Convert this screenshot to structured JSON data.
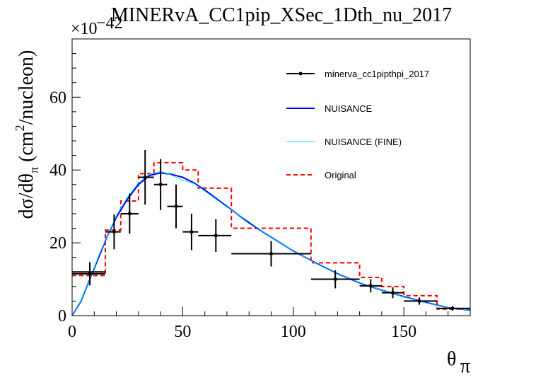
{
  "chart_data": {
    "type": "line",
    "title": "MINERvA_CC1pip_XSec_1Dth_nu_2017",
    "xlabel_main": "θ",
    "xlabel_sub": "π",
    "ylabel_parts": [
      "dσ/dθ",
      "π",
      " (cm",
      "2",
      "/nucleon)"
    ],
    "yscale_base": "×10",
    "yscale_exp": "−42",
    "xlim": [
      0,
      180
    ],
    "ylim": [
      0,
      76
    ],
    "xticks": [
      0,
      50,
      100,
      150
    ],
    "yticks": [
      0,
      20,
      40,
      60
    ],
    "colors": {
      "data": "#000000",
      "nuisance": "#0000ff",
      "fine": "#00e5ee",
      "original": "#ff0000"
    },
    "series": [
      {
        "name": "minerva_cc1pipthpi_2017",
        "kind": "points",
        "points": [
          {
            "x": 0,
            "x0": 0,
            "x1": 15,
            "y": 12,
            "err": 0,
            "xerr_draw": true
          },
          {
            "x": 8,
            "x0": 0,
            "x1": 15,
            "y": 11.5,
            "err": 3.2,
            "xerr_draw": false
          },
          {
            "x": 19,
            "x0": 15,
            "x1": 22,
            "y": 23,
            "err": 4.8
          },
          {
            "x": 26,
            "x0": 22,
            "x1": 30,
            "y": 28,
            "err": 5.5
          },
          {
            "x": 33,
            "x0": 30,
            "x1": 37,
            "y": 38,
            "err": 7.5
          },
          {
            "x": 40,
            "x0": 37,
            "x1": 43,
            "y": 36,
            "err": 7
          },
          {
            "x": 47,
            "x0": 43,
            "x1": 50,
            "y": 30,
            "err": 6
          },
          {
            "x": 54,
            "x0": 50,
            "x1": 57,
            "y": 23,
            "err": 5
          },
          {
            "x": 65,
            "x0": 57,
            "x1": 72,
            "y": 22,
            "err": 4.5
          },
          {
            "x": 90,
            "x0": 72,
            "x1": 108,
            "y": 17,
            "err": 3.5
          },
          {
            "x": 119,
            "x0": 108,
            "x1": 130,
            "y": 10,
            "err": 2.5
          },
          {
            "x": 135,
            "x0": 130,
            "x1": 140,
            "y": 8.2,
            "err": 1.8
          },
          {
            "x": 145,
            "x0": 140,
            "x1": 150,
            "y": 6.3,
            "err": 1.5
          },
          {
            "x": 157,
            "x0": 150,
            "x1": 165,
            "y": 4,
            "err": 1
          },
          {
            "x": 172,
            "x0": 165,
            "x1": 180,
            "y": 2,
            "err": 0.6
          }
        ]
      },
      {
        "name": "NUISANCE",
        "kind": "line",
        "x": [
          0,
          4,
          8,
          12,
          16,
          20,
          25,
          30,
          35,
          40,
          45,
          50,
          55,
          60,
          70,
          80,
          90,
          100,
          110,
          120,
          130,
          140,
          150,
          160,
          170,
          180
        ],
        "y": [
          0,
          4,
          10,
          16,
          22,
          27,
          32,
          36,
          38.5,
          39.2,
          38.8,
          38,
          36.5,
          34.5,
          30,
          25.5,
          21.5,
          17.8,
          14.5,
          11.5,
          9,
          7,
          5.2,
          3.6,
          2.2,
          1.5
        ]
      },
      {
        "name": "NUISANCE (FINE)",
        "kind": "line",
        "x": [
          0,
          4,
          8,
          12,
          16,
          20,
          25,
          30,
          35,
          40,
          45,
          50,
          55,
          60,
          70,
          80,
          90,
          100,
          110,
          120,
          130,
          140,
          150,
          160,
          170,
          180
        ],
        "y": [
          0,
          4.2,
          10,
          16.5,
          22,
          27.5,
          32.5,
          36.5,
          38.8,
          39.6,
          38.6,
          37.2,
          36.3,
          34.2,
          29.8,
          25.8,
          21.4,
          17.9,
          14.4,
          11.4,
          9.1,
          7,
          5.1,
          3.5,
          2.2,
          1.5
        ]
      },
      {
        "name": "Original",
        "kind": "step",
        "edges": [
          0,
          15,
          22,
          30,
          37,
          43,
          50,
          57,
          72,
          108,
          130,
          140,
          150,
          165,
          180
        ],
        "values": [
          11,
          23.5,
          31.5,
          39,
          42,
          42,
          40,
          35,
          24,
          14.5,
          10.5,
          8,
          5.5,
          1.8
        ]
      }
    ]
  }
}
